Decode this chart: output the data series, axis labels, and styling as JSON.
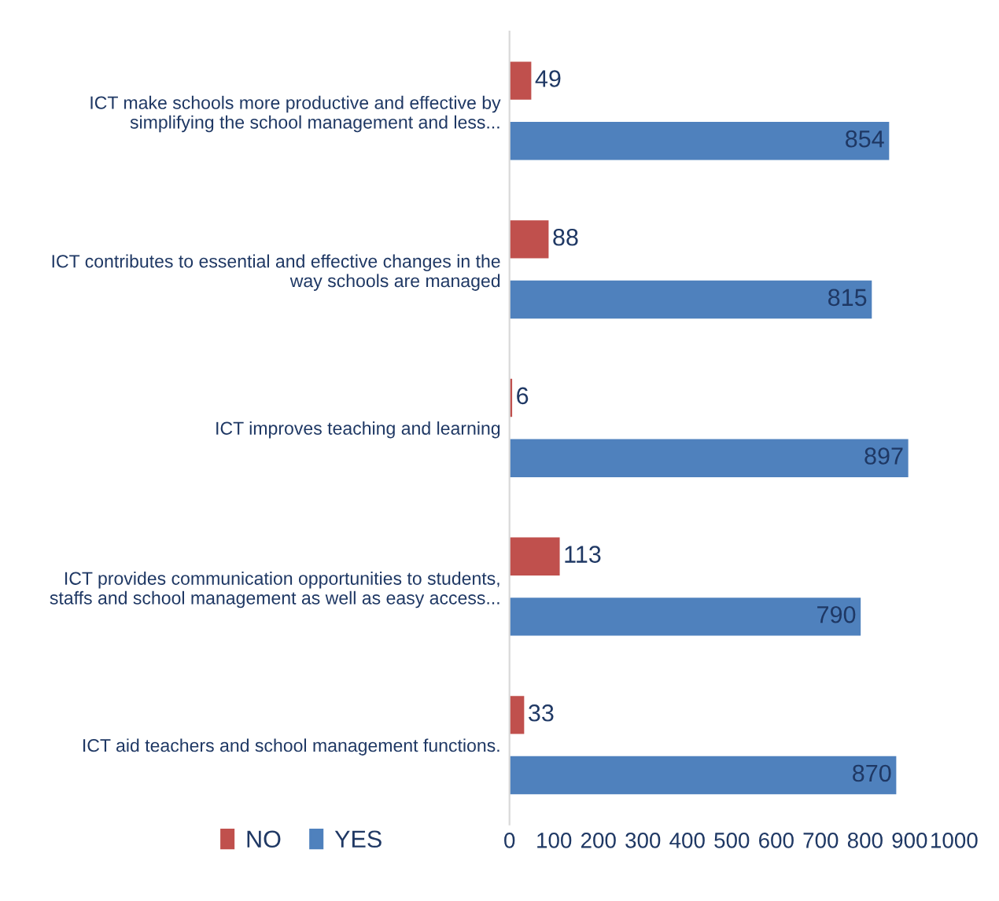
{
  "chart_data": {
    "type": "bar",
    "orientation": "horizontal",
    "categories": [
      "ICT make schools more productive and effective by\nsimplifying the school management and less...",
      "ICT contributes to essential and effective changes in the\nway schools are managed",
      "ICT improves teaching and learning",
      "ICT provides communication opportunities to students,\nstaffs and school management as well as easy access...",
      "ICT aid teachers and school management functions."
    ],
    "series": [
      {
        "name": "NO",
        "color": "#c0504d",
        "values": [
          49,
          88,
          6,
          113,
          33
        ]
      },
      {
        "name": "YES",
        "color": "#4f81bd",
        "values": [
          854,
          815,
          897,
          790,
          870
        ]
      }
    ],
    "xlim": [
      0,
      1000
    ],
    "xticks": [
      0,
      100,
      200,
      300,
      400,
      500,
      600,
      700,
      800,
      900,
      1000
    ],
    "data_labels": true,
    "grid": false,
    "legend": "bottom left"
  }
}
